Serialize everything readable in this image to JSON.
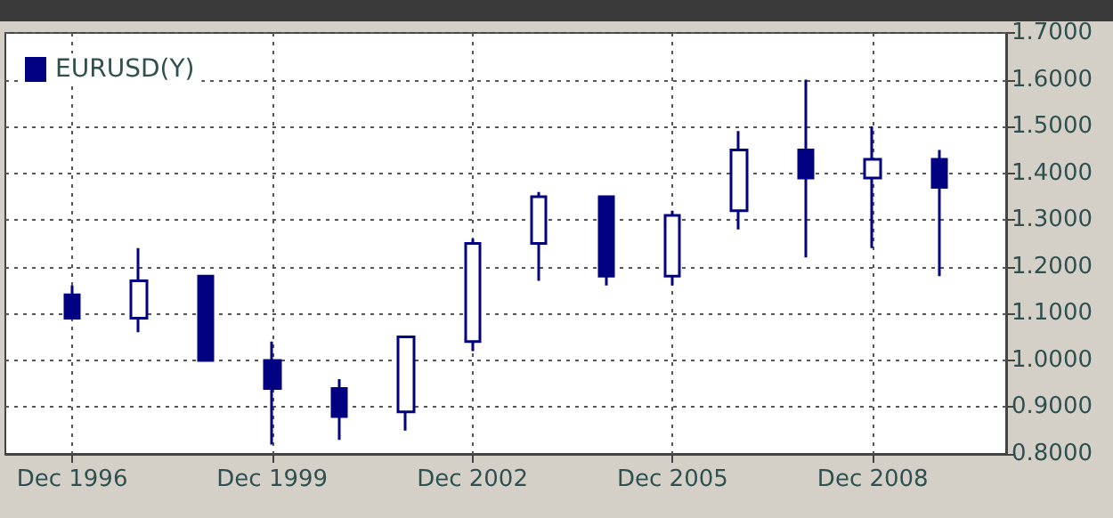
{
  "chart_data": {
    "type": "candlestick",
    "x": [
      "1996-12",
      "1997-12",
      "1998-12",
      "1999-12",
      "2000-12",
      "2001-12",
      "2002-12",
      "2003-12",
      "2004-12",
      "2005-12",
      "2006-12",
      "2007-12",
      "2008-12",
      "2009-12"
    ],
    "series": [
      {
        "name": "EURUSD(Y)",
        "color": "#000080",
        "ohlc": [
          [
            1.14,
            1.16,
            1.09,
            1.09
          ],
          [
            1.09,
            1.24,
            1.06,
            1.17
          ],
          [
            1.18,
            1.18,
            1.0,
            1.0
          ],
          [
            1.0,
            1.04,
            0.82,
            0.94
          ],
          [
            0.94,
            0.96,
            0.83,
            0.88
          ],
          [
            0.89,
            1.05,
            0.85,
            1.05
          ],
          [
            1.04,
            1.26,
            1.02,
            1.25
          ],
          [
            1.25,
            1.36,
            1.17,
            1.35
          ],
          [
            1.35,
            1.35,
            1.16,
            1.18
          ],
          [
            1.18,
            1.32,
            1.16,
            1.31
          ],
          [
            1.32,
            1.49,
            1.28,
            1.45
          ],
          [
            1.45,
            1.6,
            1.22,
            1.39
          ],
          [
            1.39,
            1.5,
            1.24,
            1.43
          ],
          [
            1.43,
            1.45,
            1.18,
            1.37
          ]
        ]
      }
    ],
    "xlim": [
      "1995-12",
      "2010-12"
    ],
    "xticks": [
      {
        "value": "1996-12",
        "label": "Dec 1996"
      },
      {
        "value": "1999-12",
        "label": "Dec 1999"
      },
      {
        "value": "2002-12",
        "label": "Dec 2002"
      },
      {
        "value": "2005-12",
        "label": "Dec 2005"
      },
      {
        "value": "2008-12",
        "label": "Dec 2008"
      }
    ],
    "ylim": [
      0.8,
      1.7
    ],
    "yticks": [
      {
        "value": 0.8,
        "label": "0.8000"
      },
      {
        "value": 0.9,
        "label": "0.9000"
      },
      {
        "value": 1.0,
        "label": "1.0000"
      },
      {
        "value": 1.1,
        "label": "1.1000"
      },
      {
        "value": 1.2,
        "label": "1.2000"
      },
      {
        "value": 1.3,
        "label": "1.3000"
      },
      {
        "value": 1.4,
        "label": "1.4000"
      },
      {
        "value": 1.5,
        "label": "1.5000"
      },
      {
        "value": 1.6,
        "label": "1.6000"
      },
      {
        "value": 1.7,
        "label": "1.7000"
      }
    ],
    "grid": true,
    "legend": "top left"
  }
}
